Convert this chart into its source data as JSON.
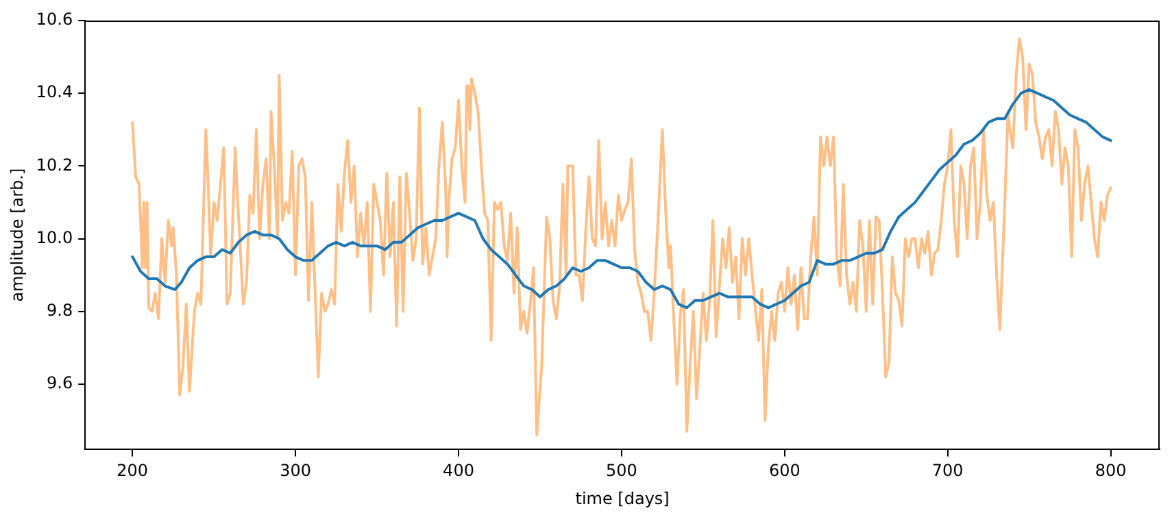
{
  "chart_data": {
    "type": "line",
    "xlabel": "time [days]",
    "ylabel": "amplitude [arb.]",
    "xlim": [
      171,
      830
    ],
    "ylim": [
      9.42,
      10.6
    ],
    "xticks": [
      200,
      300,
      400,
      500,
      600,
      700,
      800
    ],
    "yticks": [
      {
        "value": 9.6,
        "label": "9.6"
      },
      {
        "value": 9.8,
        "label": "9.8"
      },
      {
        "value": 10.0,
        "label": "10.0"
      },
      {
        "value": 10.2,
        "label": "10.2"
      },
      {
        "value": 10.4,
        "label": "10.4"
      },
      {
        "value": 10.6,
        "label": "10.6"
      }
    ],
    "grid": false,
    "legend": false,
    "marker": "none",
    "line_style": "solid",
    "series": [
      {
        "color": "#ffbf86",
        "x": [
          200,
          202,
          204,
          205,
          206,
          207,
          208,
          209,
          210,
          212,
          214,
          216,
          218,
          220,
          222,
          224,
          225,
          227,
          229,
          231,
          233,
          235,
          238,
          240,
          242,
          245,
          246,
          248,
          250,
          252,
          254,
          256,
          258,
          260,
          263,
          264,
          268,
          270,
          272,
          274,
          276,
          278,
          280,
          282,
          284,
          285,
          287,
          289,
          290,
          292,
          294,
          296,
          298,
          300,
          302,
          304,
          306,
          308,
          310,
          312,
          314,
          316,
          318,
          320,
          322,
          324,
          326,
          328,
          330,
          332,
          334,
          336,
          338,
          340,
          342,
          344,
          346,
          348,
          350,
          352,
          354,
          356,
          358,
          360,
          362,
          364,
          366,
          368,
          370,
          372,
          374,
          376,
          378,
          380,
          382,
          384,
          386,
          388,
          390,
          392,
          393,
          394,
          396,
          398,
          400,
          402,
          404,
          405,
          406,
          407,
          408,
          410,
          412,
          414,
          416,
          418,
          420,
          422,
          424,
          426,
          428,
          430,
          432,
          434,
          436,
          438,
          440,
          442,
          444,
          446,
          448,
          451,
          454,
          456,
          458,
          460,
          462,
          464,
          466,
          467,
          470,
          472,
          474,
          476,
          478,
          480,
          482,
          484,
          486,
          488,
          490,
          492,
          494,
          496,
          498,
          500,
          502,
          504,
          506,
          508,
          510,
          512,
          514,
          516,
          518,
          520,
          522,
          525,
          527,
          529,
          530,
          532,
          534,
          536,
          538,
          540,
          542,
          544,
          546,
          548,
          550,
          552,
          554,
          556,
          558,
          560,
          562,
          564,
          566,
          568,
          570,
          572,
          574,
          576,
          578,
          580,
          584,
          586,
          588,
          590,
          592,
          594,
          596,
          598,
          600,
          602,
          604,
          606,
          608,
          610,
          612,
          614,
          616,
          618,
          620,
          622,
          624,
          626,
          628,
          630,
          632,
          634,
          636,
          638,
          640,
          642,
          644,
          646,
          648,
          650,
          652,
          654,
          656,
          658,
          660,
          662,
          664,
          666,
          668,
          670,
          672,
          674,
          676,
          678,
          680,
          682,
          684,
          686,
          688,
          690,
          692,
          694,
          696,
          698,
          700,
          702,
          704,
          706,
          708,
          710,
          712,
          714,
          716,
          718,
          720,
          722,
          724,
          726,
          728,
          730,
          732,
          735,
          737,
          738,
          740,
          742,
          744,
          746,
          748,
          750,
          752,
          754,
          756,
          758,
          760,
          762,
          764,
          766,
          768,
          770,
          772,
          774,
          776,
          778,
          780,
          782,
          784,
          786,
          788,
          790,
          792,
          794,
          796,
          798,
          800
        ],
        "values": [
          10.32,
          10.17,
          10.15,
          10.05,
          9.92,
          10.1,
          9.92,
          10.1,
          9.81,
          9.8,
          9.85,
          9.78,
          10.0,
          9.88,
          10.05,
          9.98,
          10.03,
          9.9,
          9.57,
          9.65,
          9.82,
          9.58,
          9.8,
          9.85,
          9.82,
          10.3,
          10.2,
          9.95,
          10.1,
          10.05,
          10.15,
          10.25,
          9.82,
          9.85,
          10.25,
          10.15,
          9.82,
          9.88,
          10.12,
          10.07,
          10.3,
          10.0,
          10.15,
          10.22,
          10.0,
          10.35,
          10.2,
          10.0,
          10.45,
          10.05,
          10.1,
          10.07,
          10.24,
          9.9,
          10.2,
          10.22,
          10.17,
          9.83,
          10.1,
          9.86,
          9.62,
          9.85,
          9.8,
          9.82,
          9.86,
          9.82,
          10.15,
          10.02,
          10.18,
          10.27,
          10.1,
          10.2,
          9.95,
          10.07,
          9.98,
          10.1,
          9.8,
          10.15,
          10.1,
          10.05,
          9.9,
          10.18,
          9.95,
          10.1,
          9.76,
          10.17,
          9.8,
          10.18,
          10.07,
          9.94,
          10.0,
          10.36,
          9.93,
          10.03,
          9.9,
          9.95,
          10.0,
          10.2,
          10.32,
          10.15,
          9.95,
          10.1,
          10.22,
          10.25,
          10.38,
          10.2,
          10.1,
          10.42,
          10.42,
          10.3,
          10.44,
          10.4,
          10.35,
          10.2,
          10.07,
          10.05,
          9.72,
          10.1,
          10.08,
          10.1,
          9.98,
          9.94,
          10.07,
          9.85,
          10.03,
          9.75,
          9.8,
          9.74,
          9.82,
          9.92,
          9.46,
          9.65,
          10.06,
          10.0,
          9.83,
          9.78,
          9.87,
          10.15,
          9.9,
          10.2,
          10.2,
          9.9,
          9.9,
          9.83,
          10.02,
          10.17,
          10.0,
          9.98,
          10.27,
          10.0,
          10.1,
          9.98,
          10.05,
          9.98,
          10.12,
          10.05,
          10.08,
          10.1,
          10.22,
          9.97,
          9.88,
          9.85,
          9.8,
          9.8,
          9.72,
          9.85,
          10.02,
          10.3,
          10.08,
          9.92,
          9.98,
          9.78,
          9.6,
          9.79,
          9.86,
          9.47,
          9.65,
          9.8,
          9.56,
          9.7,
          9.85,
          9.72,
          9.83,
          10.05,
          9.73,
          9.87,
          10.0,
          9.92,
          10.03,
          9.88,
          9.95,
          9.78,
          10.0,
          9.9,
          10.0,
          9.9,
          9.72,
          9.86,
          9.5,
          9.7,
          9.8,
          9.72,
          9.85,
          9.88,
          9.8,
          9.92,
          9.82,
          9.9,
          9.75,
          9.92,
          9.78,
          9.78,
          9.95,
          10.06,
          9.9,
          10.28,
          10.2,
          10.28,
          10.2,
          10.28,
          9.95,
          9.87,
          10.15,
          9.9,
          9.82,
          9.88,
          9.8,
          10.05,
          9.98,
          9.8,
          10.05,
          9.82,
          10.06,
          10.05,
          9.85,
          9.62,
          9.66,
          9.95,
          9.85,
          9.83,
          9.76,
          10.0,
          9.95,
          10.0,
          10.0,
          9.92,
          10.0,
          9.96,
          10.02,
          9.9,
          9.96,
          9.97,
          10.05,
          10.15,
          10.2,
          10.3,
          10.05,
          9.95,
          10.2,
          10.15,
          10.0,
          10.2,
          10.25,
          10.0,
          10.1,
          10.3,
          10.12,
          10.05,
          10.1,
          9.9,
          9.75,
          10.1,
          10.35,
          10.3,
          10.25,
          10.45,
          10.55,
          10.5,
          10.3,
          10.48,
          10.45,
          10.32,
          10.28,
          10.22,
          10.28,
          10.3,
          10.2,
          10.35,
          10.3,
          10.15,
          10.25,
          10.2,
          9.95,
          10.3,
          10.25,
          10.05,
          10.15,
          10.2,
          10.1,
          10.0,
          9.95,
          10.1,
          10.05,
          10.12,
          10.14
        ]
      },
      {
        "color": "#1f77b4",
        "x": [
          200,
          205,
          210,
          215,
          220,
          226,
          230,
          235,
          240,
          245,
          250,
          255,
          260,
          265,
          270,
          275,
          280,
          285,
          290,
          295,
          300,
          305,
          310,
          315,
          320,
          325,
          330,
          335,
          340,
          345,
          350,
          355,
          360,
          365,
          370,
          375,
          380,
          385,
          390,
          395,
          400,
          405,
          410,
          415,
          420,
          425,
          430,
          435,
          440,
          445,
          450,
          455,
          460,
          465,
          470,
          475,
          480,
          485,
          490,
          495,
          500,
          505,
          510,
          515,
          520,
          525,
          530,
          535,
          540,
          545,
          550,
          555,
          560,
          565,
          570,
          575,
          580,
          585,
          590,
          595,
          600,
          605,
          610,
          615,
          620,
          625,
          630,
          635,
          640,
          645,
          650,
          655,
          660,
          665,
          670,
          675,
          680,
          685,
          690,
          695,
          700,
          705,
          710,
          715,
          720,
          725,
          730,
          735,
          740,
          745,
          750,
          755,
          760,
          765,
          770,
          775,
          780,
          785,
          790,
          795,
          800
        ],
        "values": [
          9.95,
          9.91,
          9.89,
          9.89,
          9.87,
          9.86,
          9.88,
          9.92,
          9.94,
          9.95,
          9.95,
          9.97,
          9.96,
          9.99,
          10.01,
          10.02,
          10.01,
          10.01,
          10.0,
          9.97,
          9.95,
          9.94,
          9.94,
          9.96,
          9.98,
          9.99,
          9.98,
          9.99,
          9.98,
          9.98,
          9.98,
          9.97,
          9.99,
          9.99,
          10.01,
          10.03,
          10.04,
          10.05,
          10.05,
          10.06,
          10.07,
          10.06,
          10.05,
          10.0,
          9.97,
          9.95,
          9.93,
          9.9,
          9.87,
          9.86,
          9.84,
          9.86,
          9.87,
          9.89,
          9.92,
          9.91,
          9.92,
          9.94,
          9.94,
          9.93,
          9.92,
          9.92,
          9.91,
          9.88,
          9.86,
          9.87,
          9.86,
          9.82,
          9.81,
          9.83,
          9.83,
          9.84,
          9.85,
          9.84,
          9.84,
          9.84,
          9.84,
          9.82,
          9.81,
          9.82,
          9.83,
          9.85,
          9.87,
          9.88,
          9.94,
          9.93,
          9.93,
          9.94,
          9.94,
          9.95,
          9.96,
          9.96,
          9.97,
          10.02,
          10.06,
          10.08,
          10.1,
          10.13,
          10.16,
          10.19,
          10.21,
          10.23,
          10.26,
          10.27,
          10.29,
          10.32,
          10.33,
          10.33,
          10.37,
          10.4,
          10.41,
          10.4,
          10.39,
          10.38,
          10.36,
          10.34,
          10.33,
          10.32,
          10.3,
          10.28,
          10.27
        ]
      }
    ]
  }
}
